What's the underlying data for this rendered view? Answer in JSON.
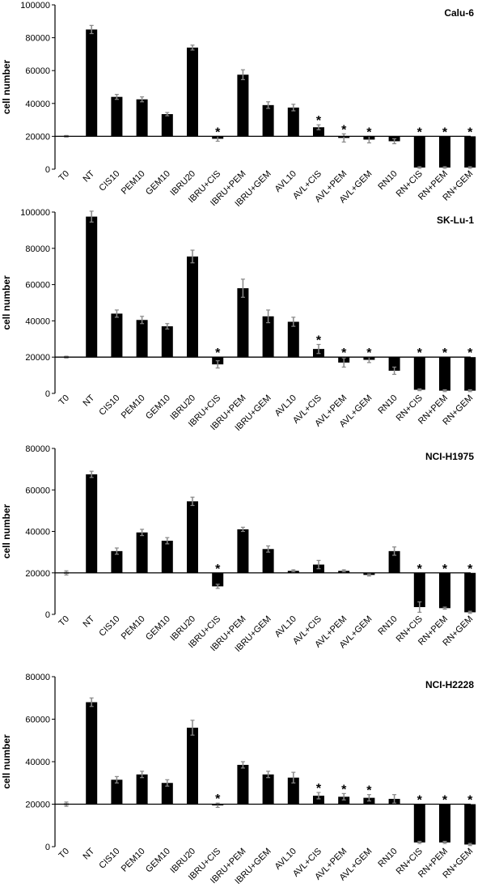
{
  "chart_data": [
    {
      "type": "bar",
      "title": "Calu-6",
      "ylabel": "cell number",
      "ylim": [
        0,
        100000
      ],
      "yticks": [
        0,
        20000,
        40000,
        60000,
        80000,
        100000
      ],
      "baseline": 20000,
      "categories": [
        "T0",
        "NT",
        "CIS10",
        "PEM10",
        "GEM10",
        "IBRU20",
        "IBRU+CIS",
        "IBRU+PEM",
        "IBRU+GEM",
        "AVL10",
        "AVL+CIS",
        "AVL+PEM",
        "AVL+GEM",
        "RN10",
        "RN+CIS",
        "RN+PEM",
        "RN+GEM"
      ],
      "values": [
        20000,
        85000,
        44000,
        42500,
        33500,
        74000,
        18500,
        57500,
        39000,
        37500,
        25500,
        19000,
        18000,
        17000,
        1000,
        1000,
        1000
      ],
      "errors": [
        500,
        2500,
        1500,
        1500,
        1000,
        1500,
        1500,
        3000,
        2000,
        2000,
        1500,
        2500,
        2000,
        1500,
        500,
        500,
        500
      ],
      "significant": [
        false,
        false,
        false,
        false,
        false,
        false,
        true,
        false,
        false,
        false,
        true,
        true,
        true,
        false,
        true,
        true,
        true
      ]
    },
    {
      "type": "bar",
      "title": "SK-Lu-1",
      "ylabel": "cell number",
      "ylim": [
        0,
        100000
      ],
      "yticks": [
        0,
        20000,
        40000,
        60000,
        80000,
        100000
      ],
      "baseline": 20000,
      "categories": [
        "T0",
        "NT",
        "CIS10",
        "PEM10",
        "GEM10",
        "IBRU20",
        "IBRU+CIS",
        "IBRU+PEM",
        "IBRU+GEM",
        "AVL10",
        "AVL+CIS",
        "AVL+PEM",
        "AVL+GEM",
        "RN10",
        "RN+CIS",
        "RN+PEM",
        "RN+GEM"
      ],
      "values": [
        20000,
        97500,
        44000,
        40500,
        37000,
        75500,
        16000,
        58000,
        42500,
        39500,
        24500,
        17000,
        18500,
        12500,
        2000,
        1500,
        1500
      ],
      "errors": [
        500,
        3000,
        2000,
        2000,
        1500,
        3500,
        2000,
        5000,
        3500,
        2500,
        2500,
        2500,
        1500,
        2000,
        500,
        500,
        500
      ],
      "significant": [
        false,
        false,
        false,
        false,
        false,
        false,
        true,
        false,
        false,
        false,
        true,
        true,
        true,
        false,
        true,
        true,
        true
      ]
    },
    {
      "type": "bar",
      "title": "NCI-H1975",
      "ylabel": "cell number",
      "ylim": [
        0,
        80000
      ],
      "yticks": [
        0,
        20000,
        40000,
        60000,
        80000
      ],
      "baseline": 20000,
      "categories": [
        "T0",
        "NT",
        "CIS10",
        "PEM10",
        "GEM10",
        "IBRU20",
        "IBRU+CIS",
        "IBRU+PEM",
        "IBRU+GEM",
        "AVL10",
        "AVL+CIS",
        "AVL+PEM",
        "AVL+GEM",
        "RN10",
        "RN+CIS",
        "RN+PEM",
        "RN+GEM"
      ],
      "values": [
        20000,
        67500,
        30500,
        39500,
        35500,
        54500,
        13500,
        41000,
        31500,
        21000,
        24000,
        21000,
        19000,
        30500,
        3500,
        3000,
        1000
      ],
      "errors": [
        1000,
        1500,
        1500,
        1500,
        1500,
        2000,
        1000,
        1000,
        1500,
        500,
        2000,
        500,
        500,
        2000,
        2500,
        500,
        500
      ],
      "significant": [
        false,
        false,
        false,
        false,
        false,
        false,
        true,
        false,
        false,
        false,
        false,
        false,
        false,
        false,
        true,
        true,
        true
      ]
    },
    {
      "type": "bar",
      "title": "NCI-H2228",
      "ylabel": "cell number",
      "ylim": [
        0,
        80000
      ],
      "yticks": [
        0,
        20000,
        40000,
        60000,
        80000
      ],
      "baseline": 20000,
      "categories": [
        "T0",
        "NT",
        "CIS10",
        "PEM10",
        "GEM10",
        "IBRU20",
        "IBRU+CIS",
        "IBRU+PEM",
        "IBRU+GEM",
        "AVL10",
        "AVL+CIS",
        "AVL+PEM",
        "AVL+GEM",
        "RN10",
        "RN+CIS",
        "RN+PEM",
        "RN+GEM"
      ],
      "values": [
        20000,
        68000,
        31500,
        34000,
        30000,
        56000,
        19500,
        38500,
        34000,
        32500,
        24000,
        23500,
        23000,
        22500,
        2000,
        2000,
        1000
      ],
      "errors": [
        1000,
        2000,
        1500,
        1500,
        1500,
        3500,
        1000,
        1500,
        1500,
        2500,
        1500,
        1500,
        1500,
        2000,
        500,
        500,
        500
      ],
      "significant": [
        false,
        false,
        false,
        false,
        false,
        false,
        true,
        false,
        false,
        false,
        true,
        true,
        true,
        false,
        true,
        true,
        true
      ]
    }
  ]
}
